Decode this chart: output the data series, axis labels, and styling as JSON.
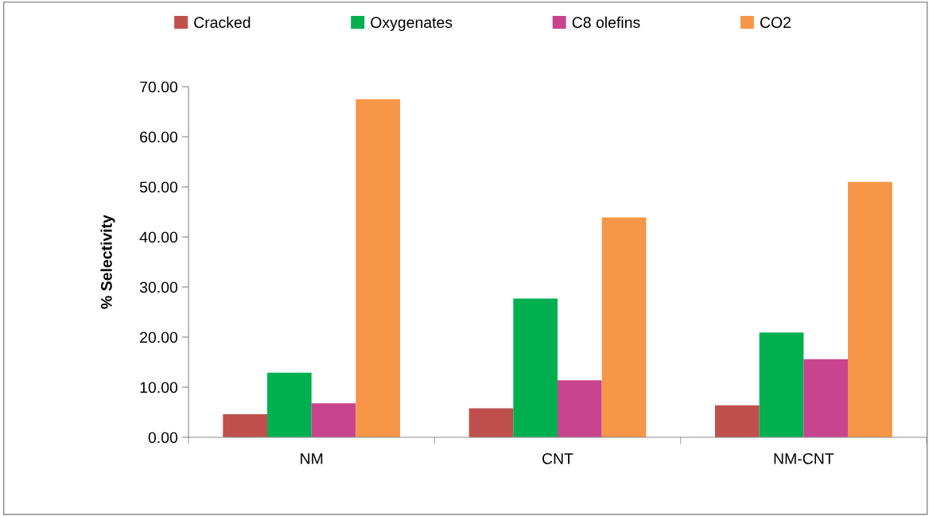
{
  "chart_data": {
    "type": "bar",
    "ylabel": "% Selectivity",
    "categories": [
      "NM",
      "CNT",
      "NM-CNT"
    ],
    "series": [
      {
        "name": "Cracked",
        "color": "#c0504d",
        "values": [
          4.6,
          5.8,
          6.4
        ]
      },
      {
        "name": "Oxygenates",
        "color": "#00b050",
        "values": [
          12.9,
          27.7,
          20.9
        ]
      },
      {
        "name": "C8 olefins",
        "color": "#c9448f",
        "values": [
          6.8,
          11.4,
          15.6
        ]
      },
      {
        "name": "CO2",
        "color": "#f79646",
        "values": [
          67.5,
          43.9,
          51.0
        ]
      }
    ],
    "ylim": [
      0,
      70
    ],
    "yticks": [
      {
        "value": 0,
        "label": "0.00"
      },
      {
        "value": 10,
        "label": "10.00"
      },
      {
        "value": 20,
        "label": "20.00"
      },
      {
        "value": 30,
        "label": "30.00"
      },
      {
        "value": 40,
        "label": "40.00"
      },
      {
        "value": 50,
        "label": "50.00"
      },
      {
        "value": 60,
        "label": "60.00"
      },
      {
        "value": 70,
        "label": "70.00"
      }
    ],
    "grid": false,
    "legend": "top"
  }
}
